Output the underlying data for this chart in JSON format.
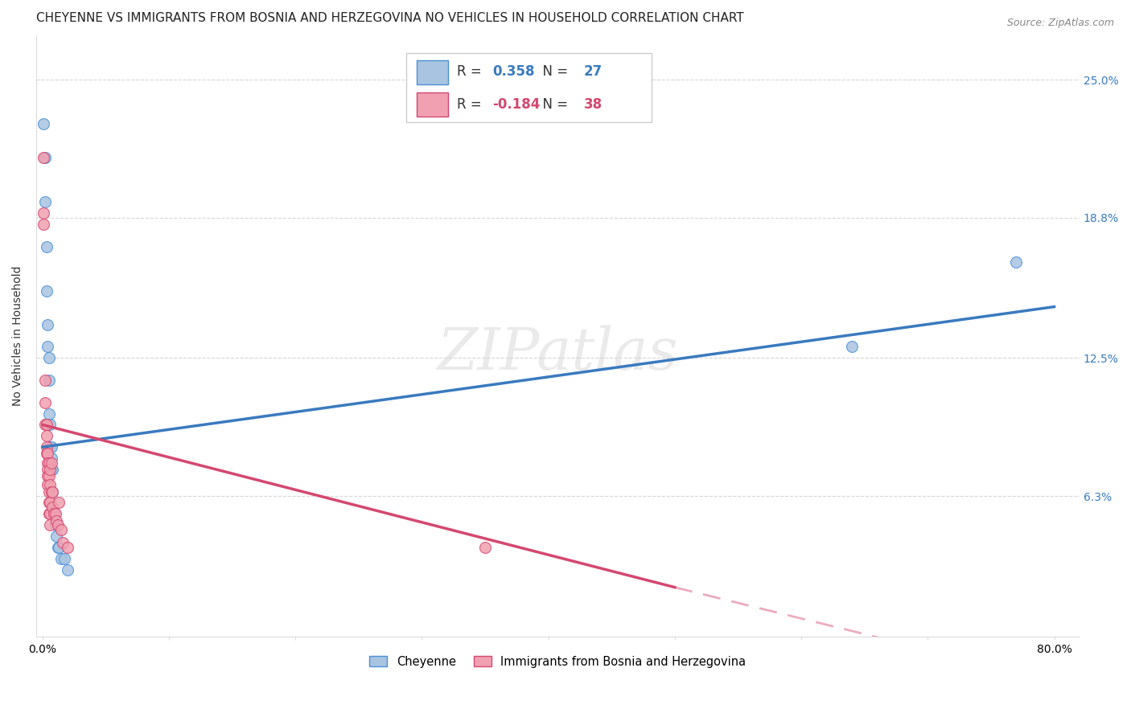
{
  "title": "CHEYENNE VS IMMIGRANTS FROM BOSNIA AND HERZEGOVINA NO VEHICLES IN HOUSEHOLD CORRELATION CHART",
  "source": "Source: ZipAtlas.com",
  "ylabel": "No Vehicles in Household",
  "x_tick_labels": [
    "0.0%",
    "",
    "",
    "",
    "",
    "",
    "",
    "",
    "80.0%"
  ],
  "x_tick_values": [
    0.0,
    0.1,
    0.2,
    0.3,
    0.4,
    0.5,
    0.6,
    0.7,
    0.8
  ],
  "y_tick_labels": [
    "6.3%",
    "12.5%",
    "18.8%",
    "25.0%"
  ],
  "y_tick_values": [
    0.063,
    0.125,
    0.188,
    0.25
  ],
  "ylim": [
    0.0,
    0.27
  ],
  "xlim": [
    -0.005,
    0.82
  ],
  "cheyenne_color": "#a8c4e0",
  "cheyenne_edge": "#4a90d9",
  "bosnia_color": "#f0a0b0",
  "bosnia_edge": "#d44870",
  "cheyenne_line_color": "#3a7abf",
  "bosnia_line_color": "#d44870",
  "background_color": "#ffffff",
  "grid_color": "#cccccc",
  "scatter_size": 100,
  "cheyenne_R": "0.358",
  "cheyenne_N": "27",
  "bosnia_R": "-0.184",
  "bosnia_N": "38",
  "cheyenne_scatter": [
    [
      0.001,
      0.23
    ],
    [
      0.002,
      0.215
    ],
    [
      0.002,
      0.195
    ],
    [
      0.003,
      0.175
    ],
    [
      0.003,
      0.155
    ],
    [
      0.004,
      0.14
    ],
    [
      0.004,
      0.13
    ],
    [
      0.005,
      0.125
    ],
    [
      0.005,
      0.115
    ],
    [
      0.005,
      0.1
    ],
    [
      0.006,
      0.095
    ],
    [
      0.006,
      0.085
    ],
    [
      0.007,
      0.085
    ],
    [
      0.007,
      0.08
    ],
    [
      0.007,
      0.075
    ],
    [
      0.008,
      0.075
    ],
    [
      0.008,
      0.065
    ],
    [
      0.009,
      0.055
    ],
    [
      0.01,
      0.05
    ],
    [
      0.011,
      0.045
    ],
    [
      0.012,
      0.04
    ],
    [
      0.013,
      0.04
    ],
    [
      0.015,
      0.035
    ],
    [
      0.017,
      0.035
    ],
    [
      0.02,
      0.03
    ],
    [
      0.64,
      0.13
    ],
    [
      0.77,
      0.168
    ]
  ],
  "bosnia_scatter": [
    [
      0.001,
      0.215
    ],
    [
      0.001,
      0.19
    ],
    [
      0.001,
      0.185
    ],
    [
      0.002,
      0.115
    ],
    [
      0.002,
      0.105
    ],
    [
      0.002,
      0.095
    ],
    [
      0.003,
      0.095
    ],
    [
      0.003,
      0.09
    ],
    [
      0.003,
      0.085
    ],
    [
      0.003,
      0.082
    ],
    [
      0.004,
      0.082
    ],
    [
      0.004,
      0.078
    ],
    [
      0.004,
      0.075
    ],
    [
      0.004,
      0.072
    ],
    [
      0.004,
      0.068
    ],
    [
      0.005,
      0.078
    ],
    [
      0.005,
      0.072
    ],
    [
      0.005,
      0.065
    ],
    [
      0.005,
      0.06
    ],
    [
      0.005,
      0.055
    ],
    [
      0.006,
      0.075
    ],
    [
      0.006,
      0.068
    ],
    [
      0.006,
      0.06
    ],
    [
      0.006,
      0.055
    ],
    [
      0.006,
      0.05
    ],
    [
      0.007,
      0.078
    ],
    [
      0.007,
      0.065
    ],
    [
      0.008,
      0.065
    ],
    [
      0.008,
      0.058
    ],
    [
      0.009,
      0.055
    ],
    [
      0.01,
      0.055
    ],
    [
      0.011,
      0.052
    ],
    [
      0.012,
      0.05
    ],
    [
      0.013,
      0.06
    ],
    [
      0.015,
      0.048
    ],
    [
      0.016,
      0.042
    ],
    [
      0.02,
      0.04
    ],
    [
      0.35,
      0.04
    ]
  ],
  "title_fontsize": 11,
  "axis_label_fontsize": 10,
  "tick_fontsize": 10
}
